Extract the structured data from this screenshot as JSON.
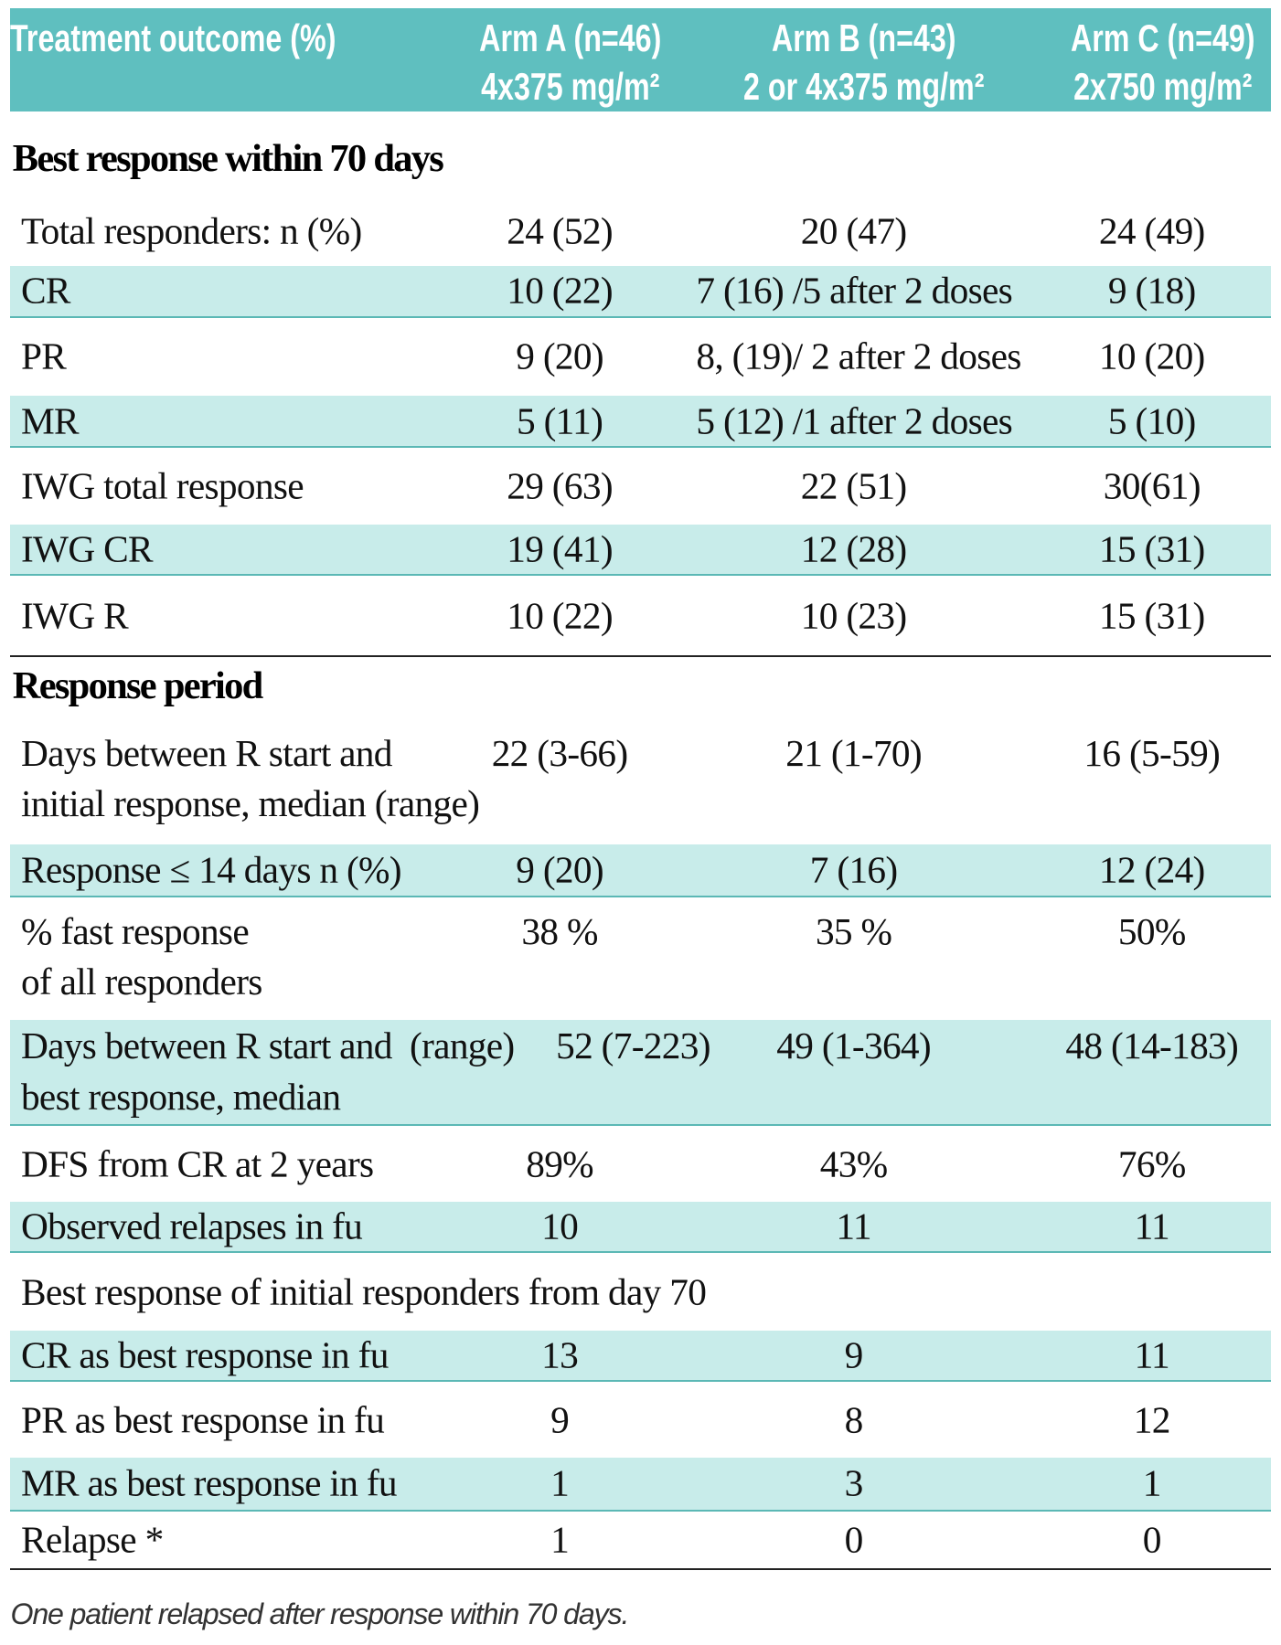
{
  "header": {
    "col0": "Treatment outcome (%)",
    "arms": [
      {
        "name": "Arm A (n=46)",
        "dose": "4x375 mg/m²"
      },
      {
        "name": "Arm B (n=43)",
        "dose": "2 or 4x375 mg/m²"
      },
      {
        "name": "Arm C (n=49)",
        "dose": "2x750 mg/m²"
      }
    ]
  },
  "sections": {
    "best": "Best response within 70 days",
    "period": "Response period"
  },
  "rows": [
    {
      "label": "Total responders: n (%)",
      "a": "24 (52)",
      "b": "20 (47)",
      "c": "24 (49)"
    },
    {
      "label": "CR",
      "a": "10 (22)",
      "b": "7 (16) /5 after 2 doses",
      "c": "9 (18)"
    },
    {
      "label": "PR",
      "a": "9 (20)",
      "b": "8, (19)/ 2 after 2 doses",
      "c": "10 (20)"
    },
    {
      "label": "MR",
      "a": "5 (11)",
      "b": "5 (12) /1 after 2 doses",
      "c": "5 (10)"
    },
    {
      "label": "IWG total response",
      "a": "29 (63)",
      "b": "22 (51)",
      "c": "30(61)"
    },
    {
      "label": "IWG CR",
      "a": "19 (41)",
      "b": "12 (28)",
      "c": "15 (31)"
    },
    {
      "label": "IWG R",
      "a": "10 (22)",
      "b": "10 (23)",
      "c": "15 (31)"
    },
    {
      "label": "Days between R start and\ninitial response, median (range)",
      "a": "22 (3-66)",
      "b": "21 (1-70)",
      "c": "16 (5-59)"
    },
    {
      "label": "Response ≤ 14 days n (%)",
      "a": "9 (20)",
      "b": "7 (16)",
      "c": "12 (24)"
    },
    {
      "label": "% fast response\nof all responders",
      "a": "38 %",
      "b": "35 %",
      "c": "50%"
    },
    {
      "label": "Days between R start and  (range)\nbest response, median",
      "a": "52 (7-223)",
      "b": "49 (1-364)",
      "c": "48 (14-183)"
    },
    {
      "label": "DFS from CR at 2 years",
      "a": "89%",
      "b": "43%",
      "c": "76%"
    },
    {
      "label": "Observed relapses in fu",
      "a": "10",
      "b": "11",
      "c": "11"
    },
    {
      "label": "Best response of initial responders from day 70"
    },
    {
      "label": "CR as best response in fu",
      "a": "13",
      "b": "9",
      "c": "11"
    },
    {
      "label": "PR as best response in fu",
      "a": "9",
      "b": "8",
      "c": "12"
    },
    {
      "label": "MR as best response in fu",
      "a": "1",
      "b": "3",
      "c": "1"
    },
    {
      "label": "Relapse *",
      "a": "1",
      "b": "0",
      "c": "0"
    }
  ],
  "footnote": "One patient relapsed after response within 70 days.",
  "colors": {
    "header": "#5fbfbf",
    "shade": "#c8ecea",
    "rule": "#5bb8b5"
  }
}
